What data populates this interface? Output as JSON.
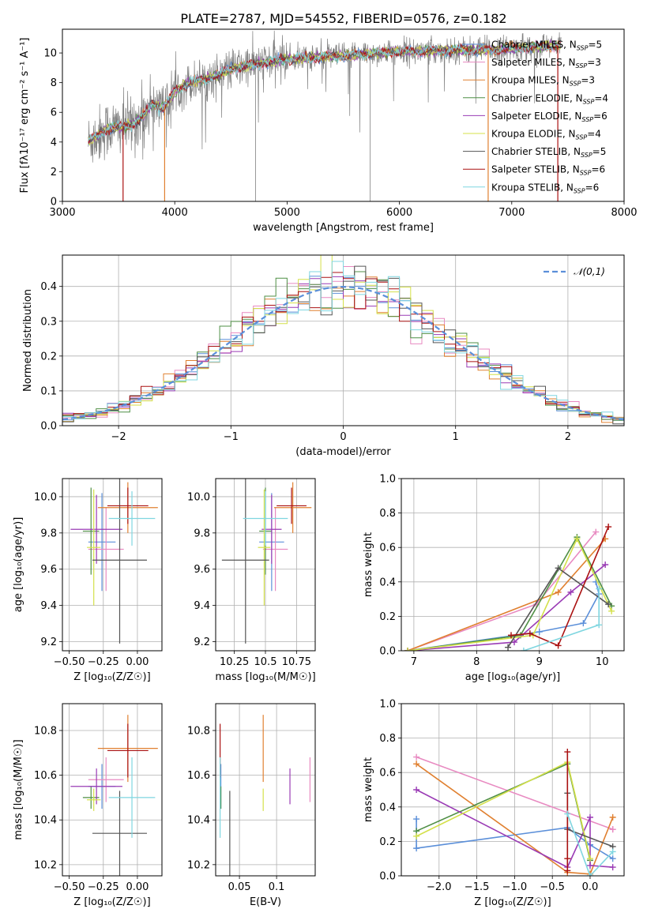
{
  "figure": {
    "title": "PLATE=2787, MJD=54552, FIBERID=0576, z=0.182"
  },
  "colors": {
    "chabrier_miles": "#5b8fd9",
    "salpeter_miles": "#e88ac1",
    "kroupa_miles": "#e08030",
    "chabrier_elodie": "#4f8f45",
    "salpeter_elodie": "#9a3bb5",
    "kroupa_elodie": "#d4e04a",
    "chabrier_stelib": "#555555",
    "salpeter_stelib": "#aa1111",
    "kroupa_stelib": "#7fd6e0",
    "normal": "#5b8fd9",
    "data": "#808080",
    "grid": "#b0b0b0"
  },
  "chart_data": [
    {
      "id": "spectrum",
      "type": "line",
      "xlabel": "wavelength [Angstrom, rest frame]",
      "ylabel": "Flux [fλ10⁻¹⁷ erg cm⁻² s⁻¹ A⁻¹]",
      "xlim": [
        3000,
        8000
      ],
      "ylim": [
        0,
        11.6
      ],
      "xticks": [
        3000,
        4000,
        5000,
        6000,
        7000,
        8000
      ],
      "yticks": [
        0,
        2,
        4,
        6,
        8,
        10
      ],
      "grid": false,
      "legend_position": "right",
      "legend": [
        {
          "label": "Chabrier MILES, N_SSP=5",
          "text": "Chabrier MILES, N",
          "sub": "SSP",
          "tail": "=5",
          "color_key": "chabrier_miles"
        },
        {
          "label": "Salpeter MILES, N_SSP=3",
          "text": "Salpeter MILES, N",
          "sub": "SSP",
          "tail": "=3",
          "color_key": "salpeter_miles"
        },
        {
          "label": "Kroupa MILES, N_SSP=3",
          "text": "Kroupa MILES, N",
          "sub": "SSP",
          "tail": "=3",
          "color_key": "kroupa_miles"
        },
        {
          "label": "Chabrier ELODIE, N_SSP=4",
          "text": "Chabrier ELODIE, N",
          "sub": "SSP",
          "tail": "=4",
          "color_key": "chabrier_elodie"
        },
        {
          "label": "Salpeter ELODIE, N_SSP=6",
          "text": "Salpeter ELODIE, N",
          "sub": "SSP",
          "tail": "=6",
          "color_key": "salpeter_elodie"
        },
        {
          "label": "Kroupa ELODIE, N_SSP=4",
          "text": "Kroupa ELODIE, N",
          "sub": "SSP",
          "tail": "=4",
          "color_key": "kroupa_elodie"
        },
        {
          "label": "Chabrier STELIB, N_SSP=5",
          "text": "Chabrier STELIB, N",
          "sub": "SSP",
          "tail": "=5",
          "color_key": "chabrier_stelib"
        },
        {
          "label": "Salpeter STELIB, N_SSP=6",
          "text": "Salpeter STELIB, N",
          "sub": "SSP",
          "tail": "=6",
          "color_key": "salpeter_stelib"
        },
        {
          "label": "Kroupa STELIB, N_SSP=6",
          "text": "Kroupa STELIB, N",
          "sub": "SSP",
          "tail": "=6",
          "color_key": "kroupa_stelib"
        }
      ],
      "continuum": [
        [
          3230,
          4.0
        ],
        [
          3400,
          4.9
        ],
        [
          3600,
          5.1
        ],
        [
          3700,
          5.6
        ],
        [
          3800,
          6.6
        ],
        [
          3900,
          6.3
        ],
        [
          4000,
          7.4
        ],
        [
          4100,
          7.9
        ],
        [
          4300,
          8.3
        ],
        [
          4500,
          8.9
        ],
        [
          4700,
          9.2
        ],
        [
          5000,
          9.6
        ],
        [
          5200,
          9.7
        ],
        [
          5500,
          9.8
        ],
        [
          5800,
          10.0
        ],
        [
          6000,
          10.1
        ],
        [
          6200,
          10.1
        ],
        [
          6500,
          10.2
        ],
        [
          6800,
          10.2
        ],
        [
          7000,
          10.3
        ],
        [
          7200,
          10.4
        ],
        [
          7440,
          10.5
        ]
      ],
      "model_drops": [
        {
          "x": 3540,
          "color_key": "salpeter_stelib"
        },
        {
          "x": 3910,
          "color_key": "kroupa_miles"
        },
        {
          "x": 6790,
          "color_key": "kroupa_miles"
        },
        {
          "x": 7410,
          "color_key": "salpeter_stelib"
        }
      ]
    },
    {
      "id": "residuals",
      "type": "histogram",
      "xlabel": "(data-model)/error",
      "ylabel": "Normed distribution",
      "xlim": [
        -2.5,
        2.5
      ],
      "ylim": [
        0,
        0.49
      ],
      "xticks": [
        -2,
        -1,
        0,
        1,
        2
      ],
      "yticks": [
        0.0,
        0.1,
        0.2,
        0.3,
        0.4
      ],
      "grid": true,
      "legend_position": "top-right",
      "legend": [
        {
          "label": "𝒩(0,1)",
          "color_key": "normal",
          "style": "dashed"
        }
      ],
      "bins": 50,
      "series_color_keys": [
        "chabrier_miles",
        "salpeter_miles",
        "kroupa_miles",
        "chabrier_elodie",
        "salpeter_elodie",
        "kroupa_elodie",
        "chabrier_stelib",
        "salpeter_stelib",
        "kroupa_stelib"
      ]
    },
    {
      "id": "age_vs_Z",
      "type": "errorbar",
      "xlabel": "Z [log₁₀(Z/Z☉)]",
      "ylabel": "age  [log₁₀(age/yr)]",
      "xlim": [
        -0.55,
        0.18
      ],
      "ylim": [
        9.15,
        10.1
      ],
      "xticks": [
        -0.5,
        -0.25,
        0.0
      ],
      "xtick_labels": [
        "−0.50",
        "−0.25",
        "0.00"
      ],
      "yticks": [
        9.2,
        9.4,
        9.6,
        9.8,
        10.0
      ],
      "grid": true,
      "points": [
        {
          "color_key": "chabrier_miles",
          "x": -0.26,
          "xerr": 0.1,
          "y": 9.75,
          "yerr": 0.27
        },
        {
          "color_key": "salpeter_miles",
          "x": -0.23,
          "xerr": 0.13,
          "y": 9.71,
          "yerr": 0.23
        },
        {
          "color_key": "kroupa_miles",
          "x": -0.07,
          "xerr": 0.22,
          "y": 9.94,
          "yerr": 0.14
        },
        {
          "color_key": "chabrier_elodie",
          "x": -0.34,
          "xerr": 0.06,
          "y": 9.81,
          "yerr": 0.24
        },
        {
          "color_key": "salpeter_elodie",
          "x": -0.3,
          "xerr": 0.19,
          "y": 9.82,
          "yerr": 0.19
        },
        {
          "color_key": "kroupa_elodie",
          "x": -0.32,
          "xerr": 0.05,
          "y": 9.72,
          "yerr": 0.32
        },
        {
          "color_key": "chabrier_stelib",
          "x": -0.13,
          "xerr": 0.2,
          "y": 9.65,
          "yerr": 0.46
        },
        {
          "color_key": "salpeter_stelib",
          "x": -0.07,
          "xerr": 0.15,
          "y": 9.95,
          "yerr": 0.1
        },
        {
          "color_key": "kroupa_stelib",
          "x": -0.04,
          "xerr": 0.17,
          "y": 9.88,
          "yerr": 0.15
        }
      ]
    },
    {
      "id": "age_vs_mass",
      "type": "errorbar",
      "xlabel": "mass [log₁₀(M/M☉)]",
      "ylabel": "",
      "xlim": [
        10.1,
        10.9
      ],
      "ylim": [
        9.15,
        10.1
      ],
      "xticks": [
        10.25,
        10.5,
        10.75
      ],
      "yticks": [
        9.2,
        9.4,
        9.6,
        9.8,
        10.0
      ],
      "grid": true,
      "points": [
        {
          "color_key": "chabrier_miles",
          "x": 10.55,
          "xerr": 0.1,
          "y": 9.75,
          "yerr": 0.27
        },
        {
          "color_key": "salpeter_miles",
          "x": 10.58,
          "xerr": 0.1,
          "y": 9.71,
          "yerr": 0.23
        },
        {
          "color_key": "kroupa_miles",
          "x": 10.72,
          "xerr": 0.15,
          "y": 9.94,
          "yerr": 0.14
        },
        {
          "color_key": "chabrier_elodie",
          "x": 10.5,
          "xerr": 0.05,
          "y": 9.81,
          "yerr": 0.24
        },
        {
          "color_key": "salpeter_elodie",
          "x": 10.55,
          "xerr": 0.08,
          "y": 9.82,
          "yerr": 0.19
        },
        {
          "color_key": "kroupa_elodie",
          "x": 10.49,
          "xerr": 0.05,
          "y": 9.72,
          "yerr": 0.32
        },
        {
          "color_key": "chabrier_stelib",
          "x": 10.34,
          "xerr": 0.19,
          "y": 9.65,
          "yerr": 0.46
        },
        {
          "color_key": "salpeter_stelib",
          "x": 10.71,
          "xerr": 0.12,
          "y": 9.95,
          "yerr": 0.1
        },
        {
          "color_key": "kroupa_stelib",
          "x": 10.5,
          "xerr": 0.18,
          "y": 9.88,
          "yerr": 0.15
        }
      ]
    },
    {
      "id": "weight_vs_age",
      "type": "line",
      "xlabel": "age  [log₁₀(age/yr)]",
      "ylabel": "mass weight",
      "xlim": [
        6.8,
        10.35
      ],
      "ylim": [
        0,
        1.0
      ],
      "xticks": [
        7,
        8,
        9,
        10
      ],
      "yticks": [
        0.0,
        0.2,
        0.4,
        0.6,
        0.8,
        1.0
      ],
      "grid": true,
      "series": [
        {
          "color_key": "chabrier_miles",
          "x": [
            6.9,
            9.0,
            9.7,
            9.95,
            9.9
          ],
          "y": [
            0.0,
            0.11,
            0.16,
            0.33,
            0.4
          ]
        },
        {
          "color_key": "salpeter_miles",
          "x": [
            6.9,
            8.95,
            9.9
          ],
          "y": [
            0.0,
            0.27,
            0.69
          ]
        },
        {
          "color_key": "kroupa_miles",
          "x": [
            6.9,
            9.3,
            10.05
          ],
          "y": [
            0.0,
            0.34,
            0.65
          ]
        },
        {
          "color_key": "chabrier_elodie",
          "x": [
            6.9,
            8.7,
            9.6,
            10.15
          ],
          "y": [
            0.0,
            0.09,
            0.66,
            0.26
          ]
        },
        {
          "color_key": "salpeter_elodie",
          "x": [
            6.9,
            8.6,
            9.5,
            10.05
          ],
          "y": [
            0.0,
            0.05,
            0.34,
            0.5
          ]
        },
        {
          "color_key": "kroupa_elodie",
          "x": [
            6.9,
            8.9,
            9.6,
            10.15
          ],
          "y": [
            0.0,
            0.09,
            0.65,
            0.23
          ]
        },
        {
          "color_key": "chabrier_stelib",
          "x": [
            8.5,
            9.3,
            10.1
          ],
          "y": [
            0.02,
            0.48,
            0.27
          ]
        },
        {
          "color_key": "salpeter_stelib",
          "x": [
            8.55,
            8.85,
            9.3,
            10.1
          ],
          "y": [
            0.09,
            0.1,
            0.03,
            0.72
          ]
        },
        {
          "color_key": "kroupa_stelib",
          "x": [
            8.75,
            9.95,
            9.95
          ],
          "y": [
            0.0,
            0.15,
            0.36
          ]
        }
      ]
    },
    {
      "id": "mass_vs_Z",
      "type": "errorbar",
      "xlabel": "Z [log₁₀(Z/Z☉)]",
      "ylabel": "mass [log₁₀(M/M☉)]",
      "xlim": [
        -0.55,
        0.18
      ],
      "ylim": [
        10.15,
        10.92
      ],
      "xticks": [
        -0.5,
        -0.25,
        0.0
      ],
      "xtick_labels": [
        "−0.50",
        "−0.25",
        "0.00"
      ],
      "yticks": [
        10.2,
        10.4,
        10.6,
        10.8
      ],
      "grid": true,
      "points": [
        {
          "color_key": "chabrier_miles",
          "x": -0.26,
          "xerr": 0.1,
          "y": 10.55,
          "yerr": 0.1
        },
        {
          "color_key": "salpeter_miles",
          "x": -0.23,
          "xerr": 0.13,
          "y": 10.58,
          "yerr": 0.1
        },
        {
          "color_key": "kroupa_miles",
          "x": -0.07,
          "xerr": 0.22,
          "y": 10.72,
          "yerr": 0.15
        },
        {
          "color_key": "chabrier_elodie",
          "x": -0.34,
          "xerr": 0.06,
          "y": 10.5,
          "yerr": 0.05
        },
        {
          "color_key": "salpeter_elodie",
          "x": -0.3,
          "xerr": 0.19,
          "y": 10.55,
          "yerr": 0.08
        },
        {
          "color_key": "kroupa_elodie",
          "x": -0.32,
          "xerr": 0.05,
          "y": 10.49,
          "yerr": 0.05
        },
        {
          "color_key": "chabrier_stelib",
          "x": -0.13,
          "xerr": 0.2,
          "y": 10.34,
          "yerr": 0.19
        },
        {
          "color_key": "salpeter_stelib",
          "x": -0.07,
          "xerr": 0.15,
          "y": 10.71,
          "yerr": 0.12
        },
        {
          "color_key": "kroupa_stelib",
          "x": -0.04,
          "xerr": 0.17,
          "y": 10.5,
          "yerr": 0.18
        }
      ]
    },
    {
      "id": "mass_vs_ebv",
      "type": "errorbar",
      "xlabel": "E(B-V)",
      "ylabel": "",
      "xlim": [
        0.018,
        0.152
      ],
      "ylim": [
        10.15,
        10.92
      ],
      "xticks": [
        0.05,
        0.1
      ],
      "yticks": [
        10.2,
        10.4,
        10.6,
        10.8
      ],
      "grid": true,
      "points": [
        {
          "color_key": "chabrier_miles",
          "x": 0.025,
          "xerr": 0,
          "y": 10.55,
          "yerr": 0.1
        },
        {
          "color_key": "salpeter_miles",
          "x": 0.145,
          "xerr": 0,
          "y": 10.58,
          "yerr": 0.1
        },
        {
          "color_key": "kroupa_miles",
          "x": 0.082,
          "xerr": 0,
          "y": 10.72,
          "yerr": 0.15
        },
        {
          "color_key": "chabrier_elodie",
          "x": 0.025,
          "xerr": 0,
          "y": 10.5,
          "yerr": 0.05
        },
        {
          "color_key": "salpeter_elodie",
          "x": 0.118,
          "xerr": 0,
          "y": 10.55,
          "yerr": 0.08
        },
        {
          "color_key": "kroupa_elodie",
          "x": 0.082,
          "xerr": 0,
          "y": 10.49,
          "yerr": 0.05
        },
        {
          "color_key": "chabrier_stelib",
          "x": 0.037,
          "xerr": 0,
          "y": 10.34,
          "yerr": 0.19
        },
        {
          "color_key": "salpeter_stelib",
          "x": 0.024,
          "xerr": 0,
          "y": 10.71,
          "yerr": 0.12
        },
        {
          "color_key": "kroupa_stelib",
          "x": 0.024,
          "xerr": 0,
          "y": 10.5,
          "yerr": 0.18
        }
      ]
    },
    {
      "id": "weight_vs_Z",
      "type": "line",
      "xlabel": "Z [log₁₀(Z/Z☉)]",
      "ylabel": "mass weight",
      "xlim": [
        -2.5,
        0.45
      ],
      "ylim": [
        0,
        1.0
      ],
      "xticks": [
        -2.0,
        -1.5,
        -1.0,
        -0.5,
        0.0
      ],
      "xtick_labels": [
        "−2.0",
        "−1.5",
        "−1.0",
        "−0.5",
        "0.0"
      ],
      "yticks": [
        0.0,
        0.2,
        0.4,
        0.6,
        0.8,
        1.0
      ],
      "grid": true,
      "series": [
        {
          "color_key": "chabrier_miles",
          "x": [
            -2.3,
            -2.3,
            -0.3,
            0.0,
            0.3
          ],
          "y": [
            0.33,
            0.16,
            0.28,
            0.18,
            0.1
          ]
        },
        {
          "color_key": "salpeter_miles",
          "x": [
            -2.3,
            0.3,
            0.3
          ],
          "y": [
            0.69,
            0.27,
            0.27
          ]
        },
        {
          "color_key": "kroupa_miles",
          "x": [
            -2.3,
            -0.3,
            0.0,
            0.3
          ],
          "y": [
            0.65,
            0.02,
            0.01,
            0.34
          ]
        },
        {
          "color_key": "chabrier_elodie",
          "x": [
            -2.3,
            -0.3,
            0.0
          ],
          "y": [
            0.26,
            0.65,
            0.09
          ]
        },
        {
          "color_key": "salpeter_elodie",
          "x": [
            -2.3,
            -0.3,
            0.0,
            0.0,
            0.3
          ],
          "y": [
            0.5,
            0.05,
            0.34,
            0.06,
            0.05
          ]
        },
        {
          "color_key": "kroupa_elodie",
          "x": [
            -2.3,
            -0.3,
            0.0
          ],
          "y": [
            0.23,
            0.66,
            0.1
          ]
        },
        {
          "color_key": "chabrier_stelib",
          "x": [
            -0.3,
            -0.3,
            0.3
          ],
          "y": [
            0.48,
            0.27,
            0.17
          ]
        },
        {
          "color_key": "salpeter_stelib",
          "x": [
            -0.3,
            -0.3,
            -0.3
          ],
          "y": [
            0.72,
            0.03,
            0.1
          ]
        },
        {
          "color_key": "kroupa_stelib",
          "x": [
            -0.3,
            0.0,
            0.3
          ],
          "y": [
            0.36,
            0.0,
            0.14
          ]
        }
      ]
    }
  ]
}
